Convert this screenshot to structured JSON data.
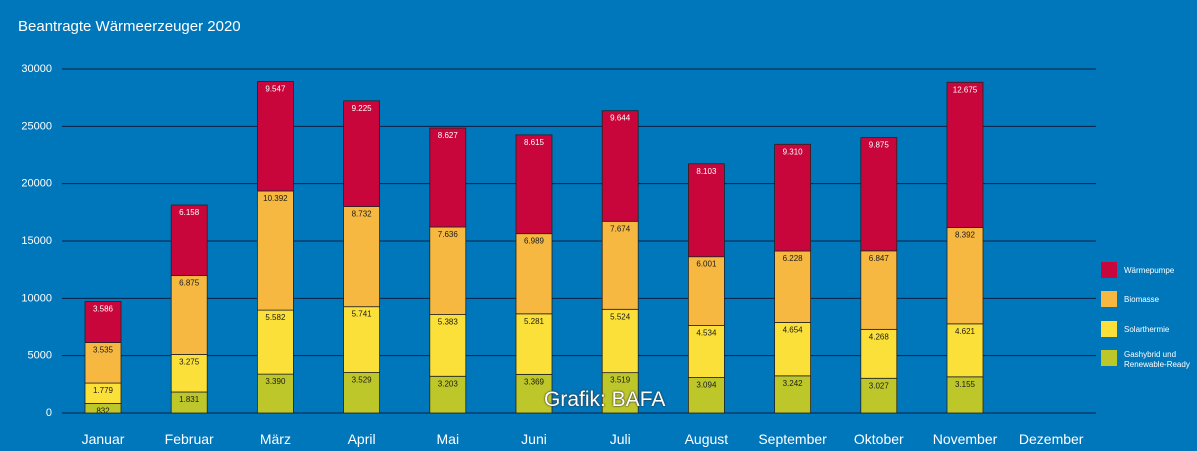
{
  "page": {
    "title": "Beantragte Wärmeerzeuger 2020",
    "credit": "Grafik: BAFA",
    "background": "#0077bb"
  },
  "chart_data": {
    "type": "bar",
    "stacked": true,
    "title": "Beantragte Wärmeerzeuger 2020",
    "xlabel": "",
    "ylabel": "",
    "ylim": [
      0,
      30000
    ],
    "yticks": [
      0,
      5000,
      10000,
      15000,
      20000,
      25000,
      30000
    ],
    "grid": true,
    "legend_position": "right",
    "categories": [
      "Januar",
      "Februar",
      "März",
      "April",
      "Mai",
      "Juni",
      "Juli",
      "August",
      "September",
      "Oktober",
      "November",
      "Dezember"
    ],
    "series": [
      {
        "name": "Gashybrid und Renewable-Ready",
        "color": "#bec72a",
        "values": [
          832,
          1831,
          3390,
          3529,
          3203,
          3369,
          3519,
          3094,
          3242,
          3027,
          3155,
          null
        ],
        "labels": [
          "832",
          "1.831",
          "3.390",
          "3.529",
          "3.203",
          "3.369",
          "3.519",
          "3.094",
          "3.242",
          "3.027",
          "3.155",
          ""
        ]
      },
      {
        "name": "Solarthermie",
        "color": "#fbe03a",
        "values": [
          1779,
          3275,
          5582,
          5741,
          5383,
          5281,
          5524,
          4534,
          4654,
          4268,
          4621,
          null
        ],
        "labels": [
          "1.779",
          "3.275",
          "5.582",
          "5.741",
          "5.383",
          "5.281",
          "5.524",
          "4.534",
          "4.654",
          "4.268",
          "4.621",
          ""
        ]
      },
      {
        "name": "Biomasse",
        "color": "#f6b841",
        "values": [
          3535,
          6875,
          10392,
          8732,
          7636,
          6989,
          7674,
          6001,
          6228,
          6847,
          8392,
          null
        ],
        "labels": [
          "3.535",
          "6.875",
          "10.392",
          "8.732",
          "7.636",
          "6.989",
          "7.674",
          "6.001",
          "6.228",
          "6.847",
          "8.392",
          ""
        ]
      },
      {
        "name": "Wärmepumpe",
        "color": "#c8063b",
        "values": [
          3586,
          6158,
          9547,
          9225,
          8627,
          8615,
          9644,
          8103,
          9310,
          9875,
          12675,
          null
        ],
        "labels": [
          "3.586",
          "6.158",
          "9.547",
          "9.225",
          "8.627",
          "8.615",
          "9.644",
          "8.103",
          "9.310",
          "9.875",
          "12.675",
          ""
        ]
      }
    ]
  }
}
